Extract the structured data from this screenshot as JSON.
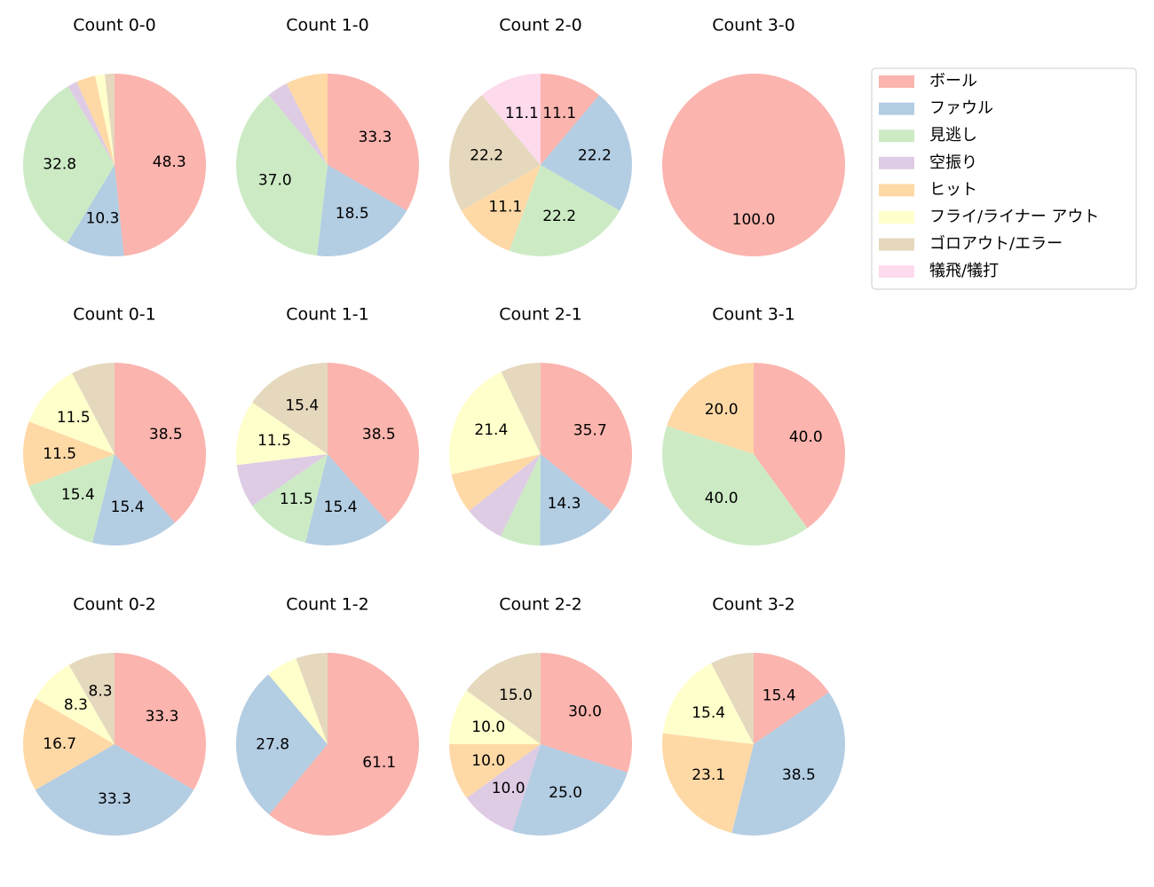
{
  "chart_data": [
    {
      "type": "pie",
      "title": "Count 0-0",
      "categories": [
        "ボール",
        "ファウル",
        "見逃し",
        "空振り",
        "ヒット",
        "フライ/ライナー アウト",
        "ゴロアウト/エラー",
        "犠飛/犠打"
      ],
      "colors": [
        "#fbb4ae",
        "#b3cde3",
        "#ccebc5",
        "#decbe4",
        "#fed9a6",
        "#ffffcc",
        "#e5d8bd",
        "#fddaec"
      ],
      "values": [
        48.3,
        10.3,
        32.8,
        1.7,
        3.4,
        1.7,
        1.7,
        0
      ],
      "value_labels": [
        "48.3",
        "10.3",
        "32.8",
        null,
        null,
        null,
        null,
        null
      ]
    },
    {
      "type": "pie",
      "title": "Count 1-0",
      "categories": [
        "ボール",
        "ファウル",
        "見逃し",
        "空振り",
        "ヒット",
        "フライ/ライナー アウト",
        "ゴロアウト/エラー",
        "犠飛/犠打"
      ],
      "colors": [
        "#fbb4ae",
        "#b3cde3",
        "#ccebc5",
        "#decbe4",
        "#fed9a6",
        "#ffffcc",
        "#e5d8bd",
        "#fddaec"
      ],
      "values": [
        33.3,
        18.5,
        37.0,
        3.7,
        7.4,
        0,
        0,
        0
      ],
      "value_labels": [
        "33.3",
        "18.5",
        "37.0",
        null,
        null,
        null,
        null,
        null
      ]
    },
    {
      "type": "pie",
      "title": "Count 2-0",
      "categories": [
        "ボール",
        "ファウル",
        "見逃し",
        "空振り",
        "ヒット",
        "フライ/ライナー アウト",
        "ゴロアウト/エラー",
        "犠飛/犠打"
      ],
      "colors": [
        "#fbb4ae",
        "#b3cde3",
        "#ccebc5",
        "#decbe4",
        "#fed9a6",
        "#ffffcc",
        "#e5d8bd",
        "#fddaec"
      ],
      "values": [
        11.1,
        22.2,
        22.2,
        0,
        11.1,
        0,
        22.2,
        11.1
      ],
      "value_labels": [
        "11.1",
        "22.2",
        "22.2",
        null,
        "11.1",
        null,
        "22.2",
        "11.1"
      ]
    },
    {
      "type": "pie",
      "title": "Count 3-0",
      "categories": [
        "ボール",
        "ファウル",
        "見逃し",
        "空振り",
        "ヒット",
        "フライ/ライナー アウト",
        "ゴロアウト/エラー",
        "犠飛/犠打"
      ],
      "colors": [
        "#fbb4ae",
        "#b3cde3",
        "#ccebc5",
        "#decbe4",
        "#fed9a6",
        "#ffffcc",
        "#e5d8bd",
        "#fddaec"
      ],
      "values": [
        100,
        0,
        0,
        0,
        0,
        0,
        0,
        0
      ],
      "value_labels": [
        "100.0",
        null,
        null,
        null,
        null,
        null,
        null,
        null
      ]
    },
    {
      "type": "pie",
      "title": "Count 0-1",
      "categories": [
        "ボール",
        "ファウル",
        "見逃し",
        "空振り",
        "ヒット",
        "フライ/ライナー アウト",
        "ゴロアウト/エラー",
        "犠飛/犠打"
      ],
      "colors": [
        "#fbb4ae",
        "#b3cde3",
        "#ccebc5",
        "#decbe4",
        "#fed9a6",
        "#ffffcc",
        "#e5d8bd",
        "#fddaec"
      ],
      "values": [
        38.5,
        15.4,
        15.4,
        0,
        11.5,
        11.5,
        7.7,
        0
      ],
      "value_labels": [
        "38.5",
        "15.4",
        "15.4",
        null,
        "11.5",
        "11.5",
        null,
        null
      ]
    },
    {
      "type": "pie",
      "title": "Count 1-1",
      "categories": [
        "ボール",
        "ファウル",
        "見逃し",
        "空振り",
        "ヒット",
        "フライ/ライナー アウト",
        "ゴロアウト/エラー",
        "犠飛/犠打"
      ],
      "colors": [
        "#fbb4ae",
        "#b3cde3",
        "#ccebc5",
        "#decbe4",
        "#fed9a6",
        "#ffffcc",
        "#e5d8bd",
        "#fddaec"
      ],
      "values": [
        38.5,
        15.4,
        11.5,
        7.7,
        0,
        11.5,
        15.4,
        0
      ],
      "value_labels": [
        "38.5",
        "15.4",
        "11.5",
        null,
        null,
        "11.5",
        "15.4",
        null
      ]
    },
    {
      "type": "pie",
      "title": "Count 2-1",
      "categories": [
        "ボール",
        "ファウル",
        "見逃し",
        "空振り",
        "ヒット",
        "フライ/ライナー アウト",
        "ゴロアウト/エラー",
        "犠飛/犠打"
      ],
      "colors": [
        "#fbb4ae",
        "#b3cde3",
        "#ccebc5",
        "#decbe4",
        "#fed9a6",
        "#ffffcc",
        "#e5d8bd",
        "#fddaec"
      ],
      "values": [
        35.7,
        14.3,
        7.1,
        7.1,
        7.1,
        21.4,
        7.1,
        0
      ],
      "value_labels": [
        "35.7",
        "14.3",
        null,
        null,
        null,
        "21.4",
        null,
        null
      ]
    },
    {
      "type": "pie",
      "title": "Count 3-1",
      "categories": [
        "ボール",
        "ファウル",
        "見逃し",
        "空振り",
        "ヒット",
        "フライ/ライナー アウト",
        "ゴロアウト/エラー",
        "犠飛/犠打"
      ],
      "colors": [
        "#fbb4ae",
        "#b3cde3",
        "#ccebc5",
        "#decbe4",
        "#fed9a6",
        "#ffffcc",
        "#e5d8bd",
        "#fddaec"
      ],
      "values": [
        40,
        0,
        40,
        0,
        20,
        0,
        0,
        0
      ],
      "value_labels": [
        "40.0",
        null,
        "40.0",
        null,
        "20.0",
        null,
        null,
        null
      ]
    },
    {
      "type": "pie",
      "title": "Count 0-2",
      "categories": [
        "ボール",
        "ファウル",
        "見逃し",
        "空振り",
        "ヒット",
        "フライ/ライナー アウト",
        "ゴロアウト/エラー",
        "犠飛/犠打"
      ],
      "colors": [
        "#fbb4ae",
        "#b3cde3",
        "#ccebc5",
        "#decbe4",
        "#fed9a6",
        "#ffffcc",
        "#e5d8bd",
        "#fddaec"
      ],
      "values": [
        33.3,
        33.3,
        0,
        0,
        16.7,
        8.3,
        8.3,
        0
      ],
      "value_labels": [
        "33.3",
        "33.3",
        null,
        null,
        "16.7",
        "8.3",
        "8.3",
        null
      ]
    },
    {
      "type": "pie",
      "title": "Count 1-2",
      "categories": [
        "ボール",
        "ファウル",
        "見逃し",
        "空振り",
        "ヒット",
        "フライ/ライナー アウト",
        "ゴロアウト/エラー",
        "犠飛/犠打"
      ],
      "colors": [
        "#fbb4ae",
        "#b3cde3",
        "#ccebc5",
        "#decbe4",
        "#fed9a6",
        "#ffffcc",
        "#e5d8bd",
        "#fddaec"
      ],
      "values": [
        61.1,
        27.8,
        0,
        0,
        0,
        5.6,
        5.6,
        0
      ],
      "value_labels": [
        "61.1",
        "27.8",
        null,
        null,
        null,
        null,
        null,
        null
      ]
    },
    {
      "type": "pie",
      "title": "Count 2-2",
      "categories": [
        "ボール",
        "ファウル",
        "見逃し",
        "空振り",
        "ヒット",
        "フライ/ライナー アウト",
        "ゴロアウト/エラー",
        "犠飛/犠打"
      ],
      "colors": [
        "#fbb4ae",
        "#b3cde3",
        "#ccebc5",
        "#decbe4",
        "#fed9a6",
        "#ffffcc",
        "#e5d8bd",
        "#fddaec"
      ],
      "values": [
        30,
        25,
        0,
        10,
        10,
        10,
        15,
        0
      ],
      "value_labels": [
        "30.0",
        "25.0",
        null,
        "10.0",
        "10.0",
        "10.0",
        "15.0",
        null
      ]
    },
    {
      "type": "pie",
      "title": "Count 3-2",
      "categories": [
        "ボール",
        "ファウル",
        "見逃し",
        "空振り",
        "ヒット",
        "フライ/ライナー アウト",
        "ゴロアウト/エラー",
        "犠飛/犠打"
      ],
      "colors": [
        "#fbb4ae",
        "#b3cde3",
        "#ccebc5",
        "#decbe4",
        "#fed9a6",
        "#ffffcc",
        "#e5d8bd",
        "#fddaec"
      ],
      "values": [
        15.4,
        38.5,
        0,
        0,
        23.1,
        15.4,
        7.7,
        0
      ],
      "value_labels": [
        "15.4",
        "38.5",
        null,
        null,
        "23.1",
        "15.4",
        null,
        null
      ]
    }
  ]
}
